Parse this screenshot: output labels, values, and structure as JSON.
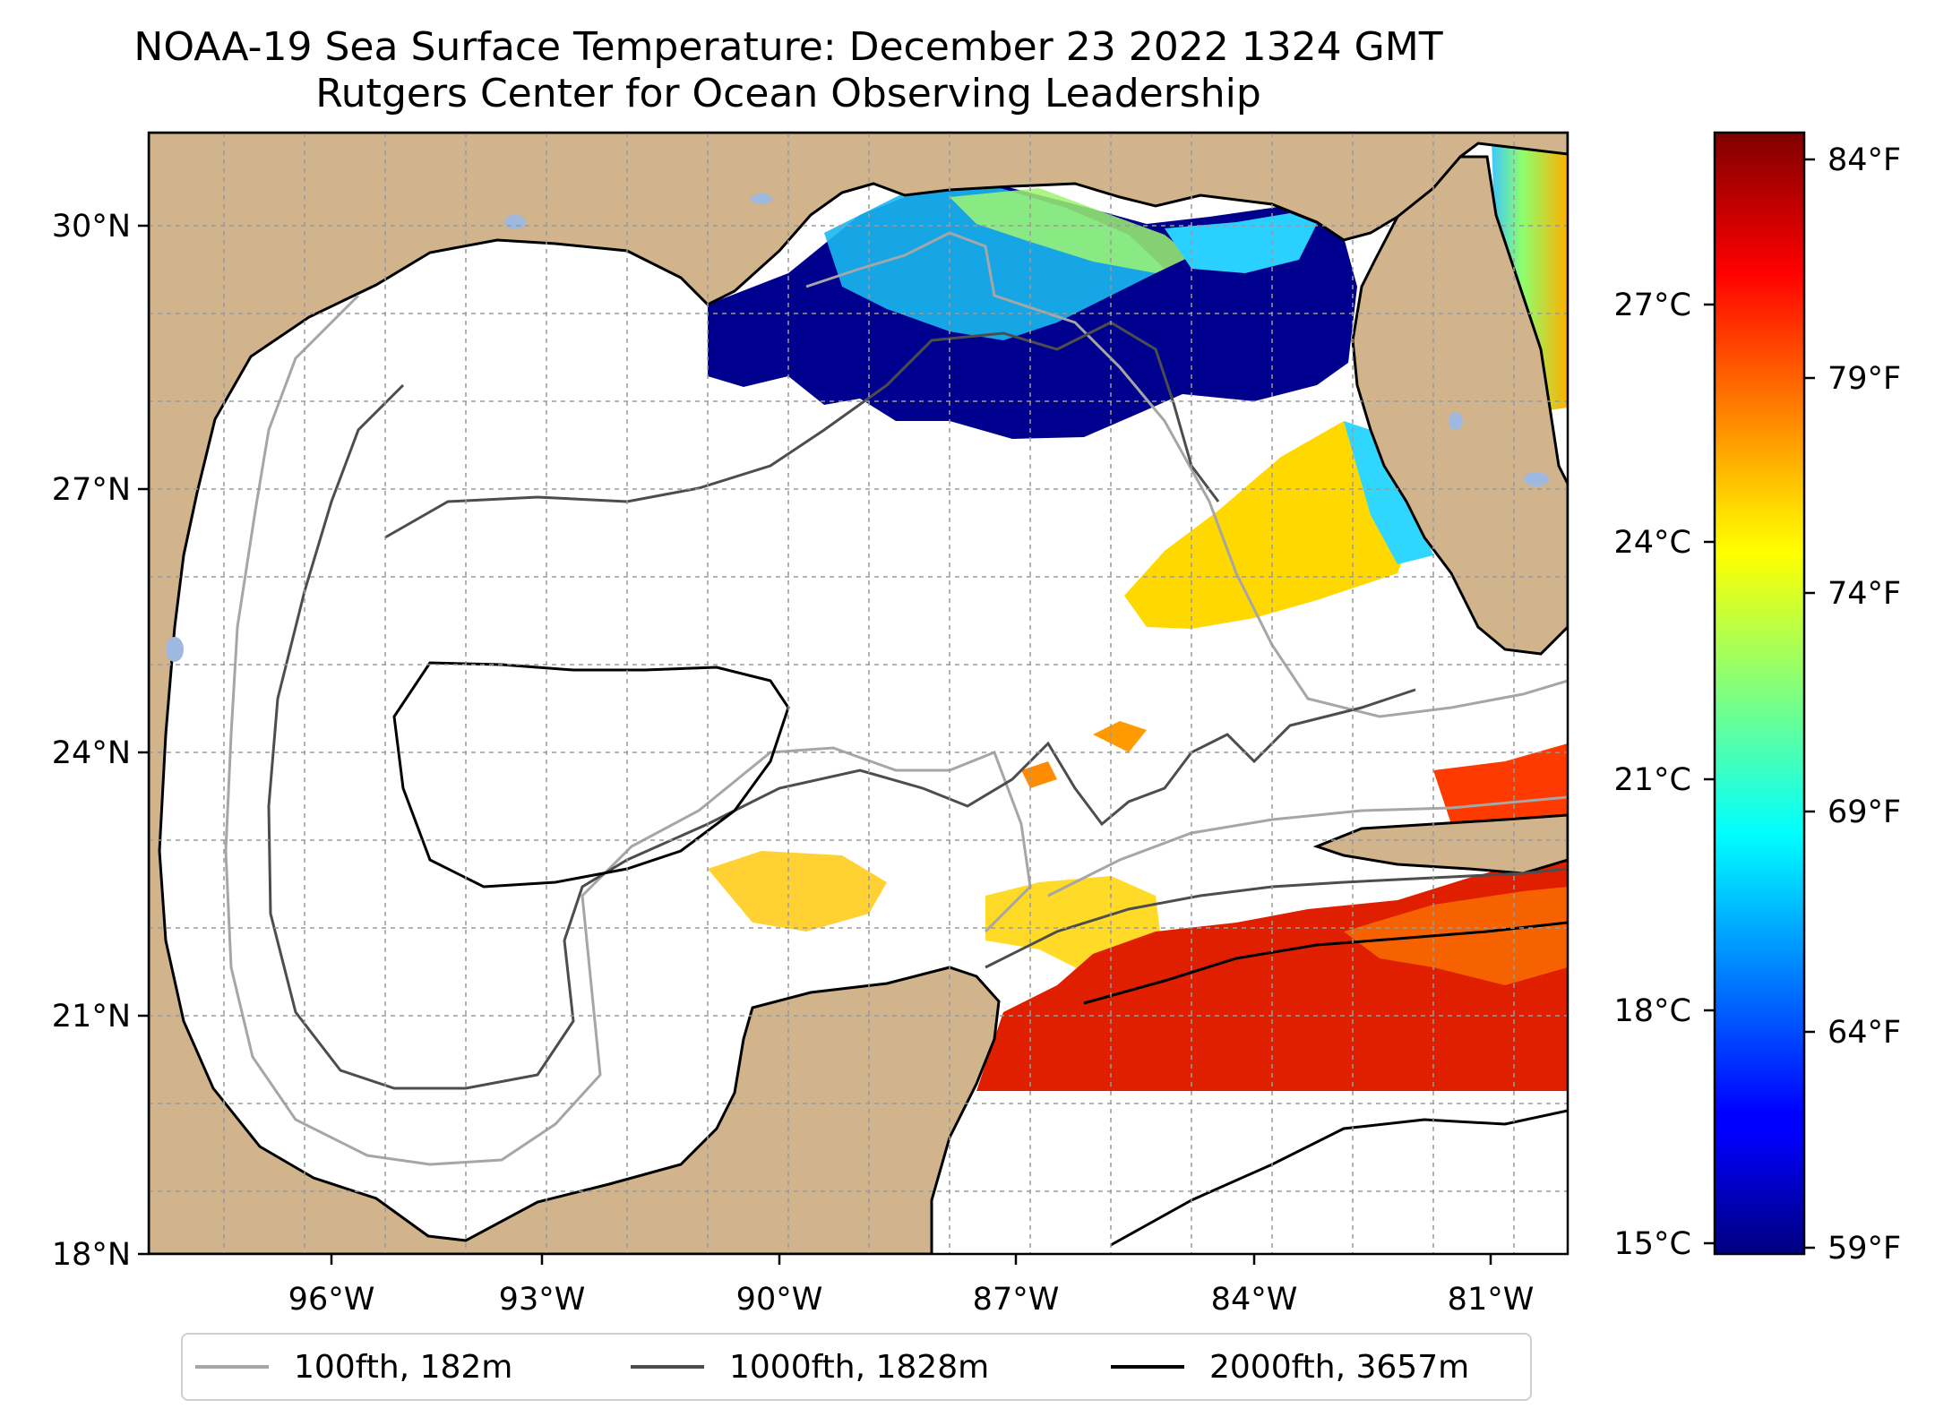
{
  "title_line1": "NOAA-19 Sea Surface Temperature: December 23 2022 1324 GMT",
  "title_line2": "Rutgers Center for Ocean Observing Leadership",
  "map": {
    "lat_labels": [
      "30°N",
      "27°N",
      "24°N",
      "21°N",
      "18°N"
    ],
    "lon_labels": [
      "96°W",
      "93°W",
      "90°W",
      "87°W",
      "84°W",
      "81°W"
    ],
    "extent": {
      "lon_min": -98.0,
      "lon_max": -80.4,
      "lat_min": 18.0,
      "lat_max": 31.0
    },
    "colors": {
      "land": "#d2b48c",
      "ocean_no_data": "#ffffff",
      "coast": "#000000",
      "lakes": "#9fb8e0"
    }
  },
  "colorbar": {
    "colormap": "jet",
    "celsius_labels": [
      "27°C",
      "24°C",
      "21°C",
      "18°C",
      "15°C"
    ],
    "fahrenheit_labels": [
      "84°F",
      "79°F",
      "74°F",
      "69°F",
      "64°F",
      "59°F"
    ]
  },
  "legend": [
    {
      "label": "100fth, 182m",
      "color": "#a6a6a6"
    },
    {
      "label": "1000fth, 1828m",
      "color": "#4d4d4d"
    },
    {
      "label": "2000fth, 3657m",
      "color": "#000000"
    }
  ]
}
